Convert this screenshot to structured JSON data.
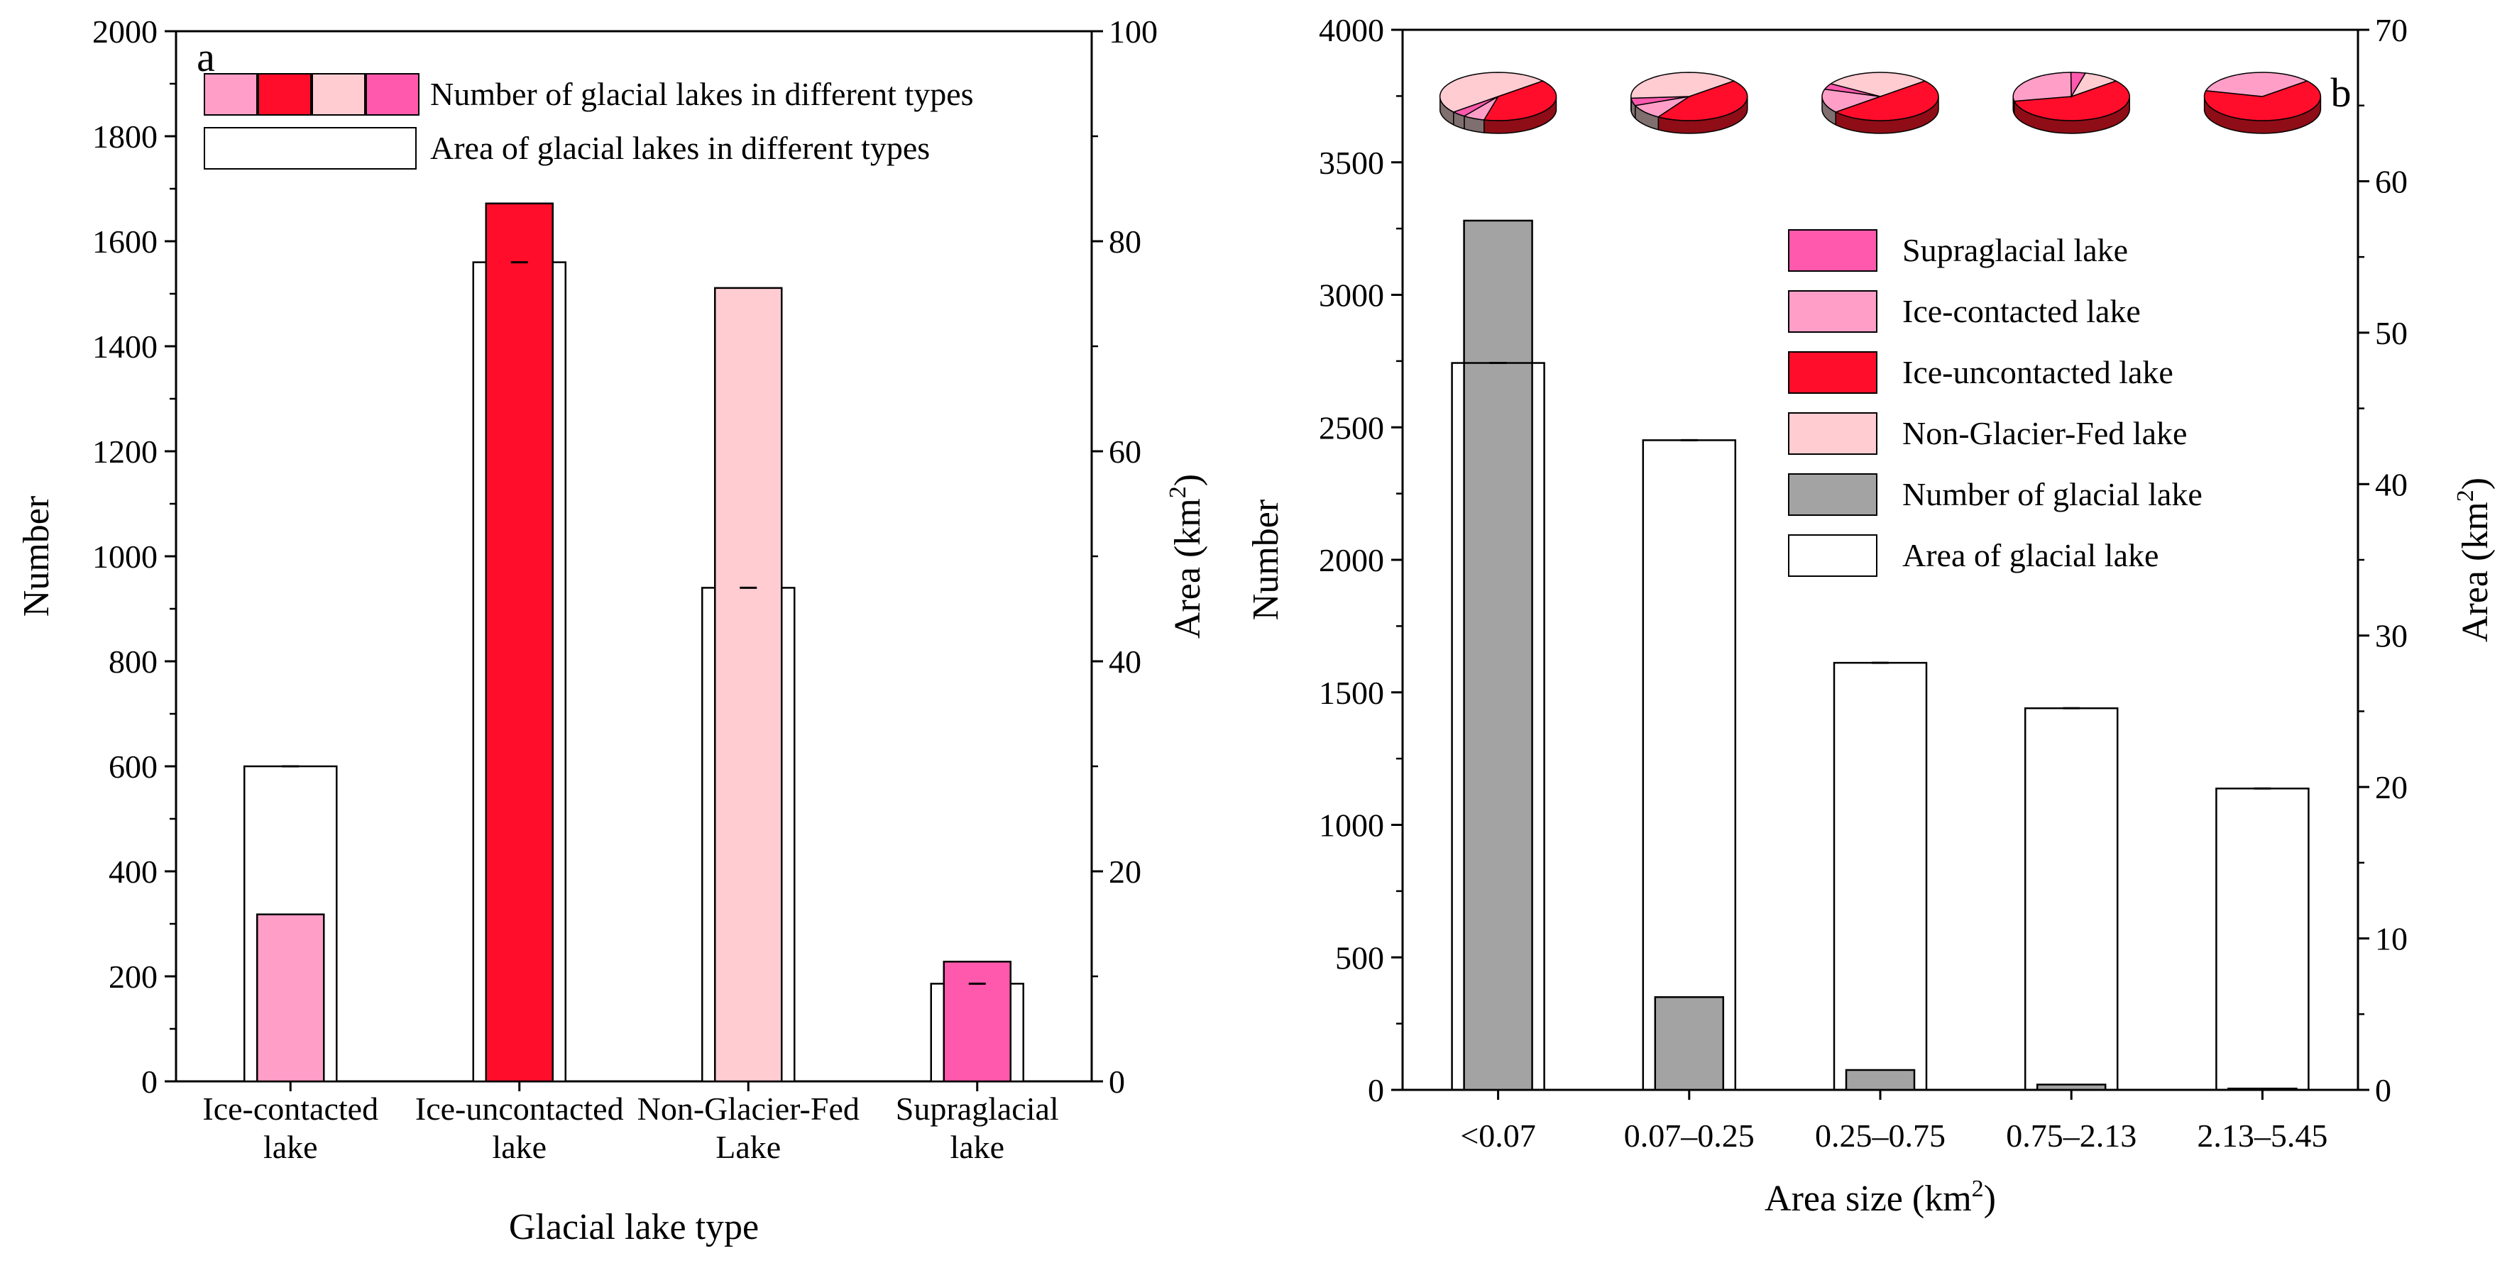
{
  "colors": {
    "ice_contacted": "#ff9fc8",
    "ice_uncontacted": "#ff0d2a",
    "non_glacier_fed": "#ffccd2",
    "supraglacial": "#ff59ad",
    "number_gray": "#a3a3a3",
    "dark_red_side": "#8f0d16",
    "dark_gray_side": "#806f6f"
  },
  "chart_data": [
    {
      "type": "bar",
      "panel_label": "a",
      "categories": [
        "Ice-contacted lake",
        "Ice-uncontacted lake",
        "Non-Glacier-Fed Lake",
        "Supraglacial lake"
      ],
      "category_lines": [
        [
          "Ice-contacted",
          "lake"
        ],
        [
          "Ice-uncontacted",
          "lake"
        ],
        [
          "Non-Glacier-Fed",
          "Lake"
        ],
        [
          "Supraglacial",
          "lake"
        ]
      ],
      "xlabel": "Glacial lake type",
      "ylabel": "Number",
      "ylabel_right": "Area (km",
      "ylabel_right_sup": "2",
      "ylabel_right_end": ")",
      "ylim": [
        0,
        2000
      ],
      "ylim_right": [
        0,
        100
      ],
      "yticks": [
        0,
        200,
        400,
        600,
        800,
        1000,
        1200,
        1400,
        1600,
        1800,
        2000
      ],
      "yticks_right": [
        0,
        20,
        40,
        60,
        80,
        100
      ],
      "series": [
        {
          "name": "Number of glacial lakes in different types",
          "axis": "left",
          "values": [
            318,
            1672,
            1511,
            228
          ]
        },
        {
          "name": "Area of glacial lakes in different types",
          "axis": "right",
          "values": [
            30.0,
            78.0,
            47.0,
            9.3
          ]
        }
      ],
      "legend": [
        "Number of glacial lakes in different types",
        "Area of glacial lakes in different types"
      ]
    },
    {
      "type": "bar",
      "panel_label": "b",
      "categories": [
        "<0.07",
        "0.07–0.25",
        "0.25–0.75",
        "0.75–2.13",
        "2.13–5.45"
      ],
      "xlabel": "Area size (km",
      "xlabel_sup": "2",
      "xlabel_end": ")",
      "ylabel": "Number",
      "ylabel_right": "Area (km",
      "ylabel_right_sup": "2",
      "ylabel_right_end": ")",
      "ylim": [
        0,
        4000
      ],
      "ylim_right": [
        0,
        70
      ],
      "yticks": [
        0,
        500,
        1000,
        1500,
        2000,
        2500,
        3000,
        3500,
        4000
      ],
      "yticks_right": [
        0,
        10,
        20,
        30,
        40,
        50,
        60,
        70
      ],
      "series": [
        {
          "name": "Number of glacial lake",
          "axis": "left",
          "values": [
            3280,
            350,
            75,
            20,
            5
          ]
        },
        {
          "name": "Area of glacial lake",
          "axis": "right",
          "values": [
            48.0,
            42.9,
            28.2,
            25.2,
            19.9
          ]
        }
      ],
      "pie_composition": [
        {
          "category": "<0.07",
          "ice_uncontacted": 0.4,
          "ice_contacted": 0.06,
          "supraglacial": 0.04,
          "non_glacier_fed": 0.5
        },
        {
          "category": "0.07–0.25",
          "ice_uncontacted": 0.45,
          "ice_contacted": 0.1,
          "supraglacial": 0.05,
          "non_glacier_fed": 0.4
        },
        {
          "category": "0.25–0.75",
          "ice_uncontacted": 0.5,
          "ice_contacted": 0.16,
          "supraglacial": 0.04,
          "non_glacier_fed": 0.3
        },
        {
          "category": "0.75–2.13",
          "ice_uncontacted": 0.58,
          "ice_contacted": 0.28,
          "supraglacial": 0.04,
          "non_glacier_fed": 0.1
        },
        {
          "category": "2.13–5.45",
          "ice_uncontacted": 0.65,
          "ice_contacted": 0.35,
          "supraglacial": 0.0,
          "non_glacier_fed": 0.0
        }
      ],
      "legend": [
        "Supraglacial lake",
        "Ice-contacted lake",
        "Ice-uncontacted lake",
        "Non-Glacier-Fed lake",
        "Number of glacial lake",
        "Area of glacial lake"
      ]
    }
  ]
}
